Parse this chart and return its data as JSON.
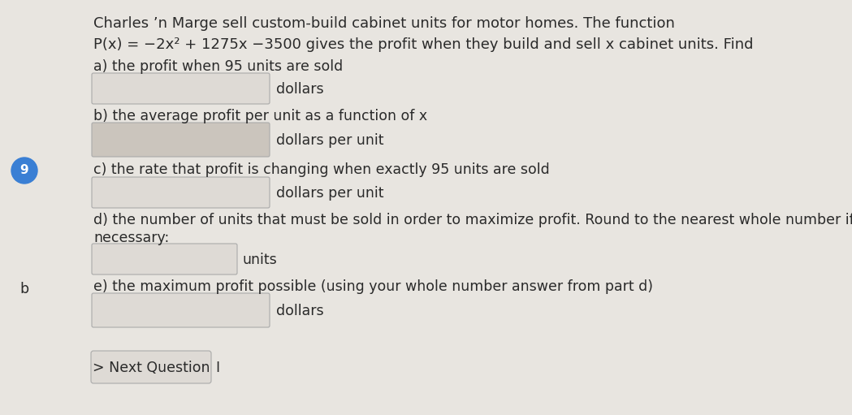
{
  "bg_color": "#e8e5e0",
  "text_color": "#2a2a2a",
  "box_facecolor": "#dedad5",
  "box_b_facecolor": "#cbc5bd",
  "box_edge_color": "#aaaaaa",
  "title_line1": "Charles ’n Marge sell custom-build cabinet units for motor homes. The function",
  "title_line2": "P(x) = −2x² + 1275x −3500 gives the profit when they build and sell x cabinet units. Find",
  "part_a_label": "a) the profit when 95 units are sold",
  "part_a_unit": "dollars",
  "part_b_label": "b) the average profit per unit as a function of x",
  "part_b_unit": "dollars per unit",
  "part_c_label": "c) the rate that profit is changing when exactly 95 units are sold",
  "part_c_unit": "dollars per unit",
  "part_d_label": "d) the number of units that must be sold in order to maximize profit. Round to the nearest whole number if",
  "part_d_label2": "necessary:",
  "part_d_unit": "units",
  "part_e_label": "e) the maximum profit possible (using your whole number answer from part d)",
  "part_e_unit": "dollars",
  "next_btn": "> Next Question",
  "left_circle_label": "9",
  "left_b_label": "b",
  "font_size_title": 13.0,
  "font_size_body": 12.5
}
